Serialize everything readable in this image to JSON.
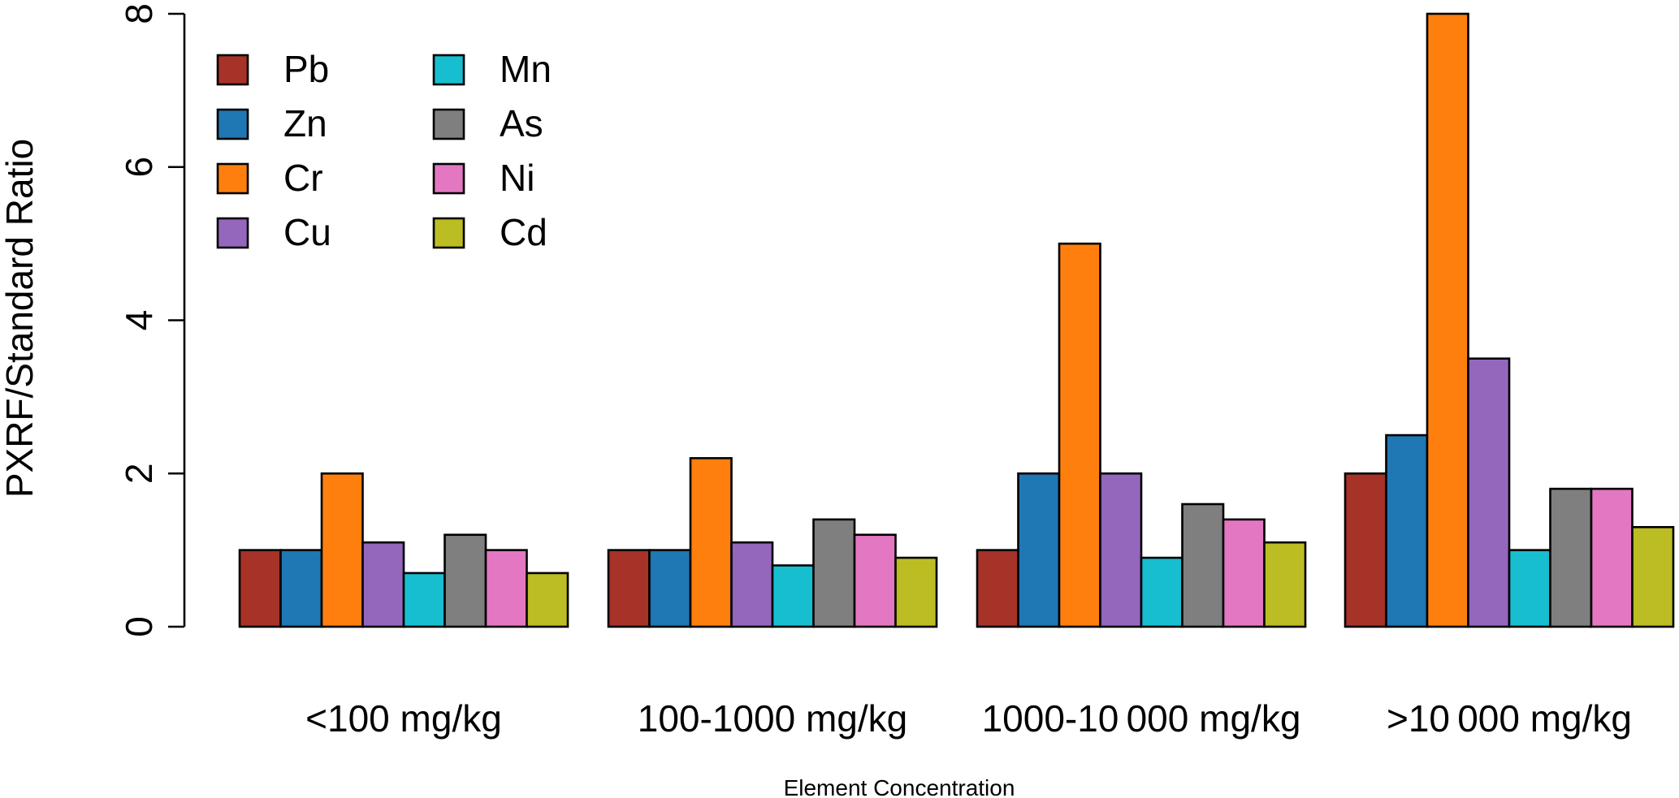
{
  "chart_data": {
    "type": "bar",
    "title": "",
    "xlabel": "Element Concentration",
    "ylabel": "PXRF/Standard Ratio",
    "ylim": [
      0,
      8
    ],
    "yticks": [
      0,
      2,
      4,
      6,
      8
    ],
    "grid": false,
    "legend_position": "top-left",
    "categories": [
      "<100 mg/kg",
      "100-1000 mg/kg",
      "1000-10 000 mg/kg",
      ">10 000 mg/kg"
    ],
    "series": [
      {
        "name": "Pb",
        "color": "#a63228",
        "values": [
          1.0,
          1.0,
          1.0,
          2.0
        ]
      },
      {
        "name": "Zn",
        "color": "#1f77b4",
        "values": [
          1.0,
          1.0,
          2.0,
          2.5
        ]
      },
      {
        "name": "Cr",
        "color": "#ff7f0e",
        "values": [
          2.0,
          2.2,
          5.0,
          8.0
        ]
      },
      {
        "name": "Cu",
        "color": "#9467bd",
        "values": [
          1.1,
          1.1,
          2.0,
          3.5
        ]
      },
      {
        "name": "Mn",
        "color": "#17becf",
        "values": [
          0.7,
          0.8,
          0.9,
          1.0
        ]
      },
      {
        "name": "As",
        "color": "#7f7f7f",
        "values": [
          1.2,
          1.4,
          1.6,
          1.8
        ]
      },
      {
        "name": "Ni",
        "color": "#e377c2",
        "values": [
          1.0,
          1.2,
          1.4,
          1.8
        ]
      },
      {
        "name": "Cd",
        "color": "#bcbd22",
        "values": [
          0.7,
          0.9,
          1.1,
          1.3
        ]
      }
    ]
  }
}
